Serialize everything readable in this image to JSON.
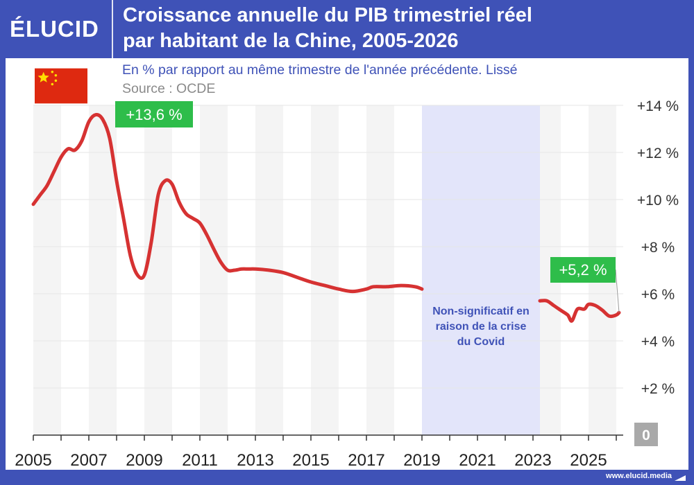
{
  "brand": {
    "logo_text": "ÉLUCID",
    "footer_url": "www.elucid.media"
  },
  "colors": {
    "brand_blue": "#3f52b7",
    "line": "#d63232",
    "highlight_green": "#2ebd4a",
    "covid_band": "#e3e5fa",
    "zero_box": "#a9a9a9"
  },
  "icons": [
    "china-flag-icon",
    "elucid-logo-icon"
  ],
  "chart_data": {
    "type": "line",
    "title": "Croissance annuelle du PIB trimestriel réel par habitant de la Chine, 2005-2026",
    "title_lines": [
      "Croissance annuelle du PIB trimestriel réel",
      "par habitant de la Chine, 2005-2026"
    ],
    "subtitle": "En % par rapport au même trimestre de l'année précédente. Lissé",
    "source": "Source : OCDE",
    "x_range": [
      2005,
      2026.25
    ],
    "ylim": [
      0,
      14
    ],
    "y_axis_side": "right",
    "y_ticks": [
      {
        "value": 14,
        "label": "+14 %"
      },
      {
        "value": 12,
        "label": "+12 %"
      },
      {
        "value": 10,
        "label": "+10 %"
      },
      {
        "value": 8,
        "label": "+8 %"
      },
      {
        "value": 6,
        "label": "+6 %"
      },
      {
        "value": 4,
        "label": "+4 %"
      },
      {
        "value": 2,
        "label": "+2 %"
      }
    ],
    "zero_label": "0",
    "x_ticks": [
      "2005",
      "2007",
      "2009",
      "2011",
      "2013",
      "2015",
      "2017",
      "2019",
      "2021",
      "2023",
      "2025"
    ],
    "covid_band": {
      "start": 2019.0,
      "end": 2023.25,
      "label_lines": [
        "Non-significatif en",
        "raison de la crise",
        "du Covid"
      ]
    },
    "series": [
      {
        "segments": [
          [
            [
              2005.0,
              9.8
            ],
            [
              2005.25,
              10.2
            ],
            [
              2005.5,
              10.6
            ],
            [
              2005.75,
              11.2
            ],
            [
              2006.0,
              11.8
            ],
            [
              2006.25,
              12.15
            ],
            [
              2006.5,
              12.1
            ],
            [
              2006.75,
              12.5
            ],
            [
              2007.0,
              13.3
            ],
            [
              2007.25,
              13.6
            ],
            [
              2007.5,
              13.4
            ],
            [
              2007.75,
              12.6
            ],
            [
              2008.0,
              10.8
            ],
            [
              2008.25,
              9.2
            ],
            [
              2008.5,
              7.6
            ],
            [
              2008.75,
              6.8
            ],
            [
              2009.0,
              6.8
            ],
            [
              2009.25,
              8.2
            ],
            [
              2009.5,
              10.2
            ],
            [
              2009.75,
              10.8
            ],
            [
              2010.0,
              10.65
            ],
            [
              2010.25,
              9.9
            ],
            [
              2010.5,
              9.4
            ],
            [
              2010.75,
              9.2
            ],
            [
              2011.0,
              9.0
            ],
            [
              2011.25,
              8.5
            ],
            [
              2011.5,
              7.9
            ],
            [
              2011.75,
              7.35
            ],
            [
              2012.0,
              7.0
            ],
            [
              2012.25,
              7.0
            ],
            [
              2012.5,
              7.05
            ],
            [
              2012.75,
              7.05
            ],
            [
              2013.0,
              7.05
            ],
            [
              2013.5,
              7.0
            ],
            [
              2014.0,
              6.9
            ],
            [
              2014.5,
              6.7
            ],
            [
              2015.0,
              6.5
            ],
            [
              2015.5,
              6.35
            ],
            [
              2016.0,
              6.2
            ],
            [
              2016.5,
              6.1
            ],
            [
              2017.0,
              6.2
            ],
            [
              2017.25,
              6.3
            ],
            [
              2017.75,
              6.3
            ],
            [
              2018.25,
              6.35
            ],
            [
              2018.75,
              6.3
            ],
            [
              2019.0,
              6.2
            ]
          ],
          [
            [
              2023.25,
              5.7
            ],
            [
              2023.5,
              5.7
            ],
            [
              2023.75,
              5.5
            ],
            [
              2024.0,
              5.3
            ],
            [
              2024.25,
              5.1
            ],
            [
              2024.4,
              4.85
            ],
            [
              2024.6,
              5.35
            ],
            [
              2024.85,
              5.35
            ],
            [
              2025.0,
              5.55
            ],
            [
              2025.25,
              5.5
            ],
            [
              2025.5,
              5.3
            ],
            [
              2025.75,
              5.05
            ],
            [
              2026.0,
              5.1
            ],
            [
              2026.1,
              5.2
            ]
          ]
        ]
      }
    ],
    "annotations": [
      {
        "label": "+13,6 %",
        "x": 2007.25,
        "y": 13.6
      },
      {
        "label": "+5,2 %",
        "x": 2026.1,
        "y": 5.2
      }
    ]
  }
}
